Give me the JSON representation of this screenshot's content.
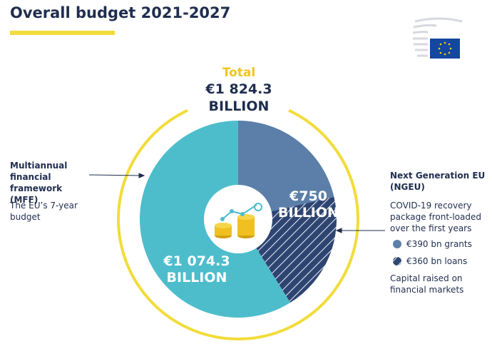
{
  "chart_data": {
    "type": "pie",
    "title": "Overall budget 2021-2027",
    "categories": [
      "Multiannual financial framework (MFF)",
      "€390 bn grants",
      "€360 bn loans"
    ],
    "values": [
      1074.3,
      390,
      360
    ],
    "value_labels": [
      "€1 074.3 BILLION",
      null,
      null
    ],
    "colors": [
      "#4dbdcc",
      "#5b7fa9",
      "#2e4471"
    ],
    "hatch": [
      false,
      false,
      true
    ],
    "total": {
      "title": "Total",
      "value": 1824.3,
      "label": "€1 824.3 BILLION",
      "color": "#f2dc3a"
    },
    "groups": [
      {
        "name": "Next Generation EU (NGEU)",
        "value": 750,
        "label": "€750 BILLION",
        "description": "COVID-19 recovery package front-loaded over the first years",
        "note": "Capital raised on financial markets"
      }
    ],
    "mff_description": "The EU’s 7-year budget"
  }
}
